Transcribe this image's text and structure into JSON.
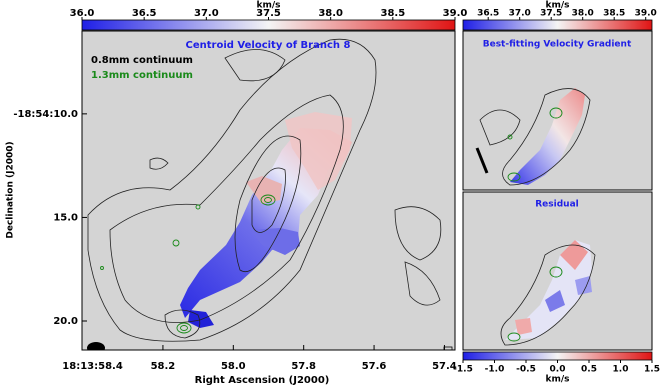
{
  "chart_data": [
    {
      "type": "map",
      "title": "Centroid Velocity of Branch 8",
      "legend": [
        {
          "name": "0.8mm continuum",
          "color": "#000000"
        },
        {
          "name": "1.3mm continuum",
          "color": "#1a8a1a"
        }
      ],
      "xlabel": "Right Ascension (J2000)",
      "ylabel": "Declination (J2000)",
      "xlim": [
        58.43,
        57.37
      ],
      "xticks": [
        {
          "value": 58.4,
          "label": "18:13:58.4"
        },
        58.2,
        {
          "value": 58.0,
          "label": "58.0"
        },
        57.8,
        57.6,
        57.4
      ],
      "ylim": [
        6,
        21.4
      ],
      "yticks": [
        {
          "value": 10,
          "label": "-18:54:10.0"
        },
        {
          "value": 15,
          "label": "15.0"
        },
        {
          "value": 20,
          "label": "20.0"
        }
      ],
      "colorbar": {
        "label": "km/s",
        "lim": [
          36,
          39
        ],
        "ticks": [
          {
            "value": 36,
            "label": "36.0"
          },
          36.5,
          {
            "value": 37,
            "label": "37.0"
          },
          37.5,
          {
            "value": 38,
            "label": "38.0"
          },
          38.5,
          {
            "value": 39,
            "label": "39.0"
          }
        ]
      }
    },
    {
      "type": "map",
      "title": "Best-fitting Velocity Gradient",
      "colorbar": {
        "label": "km/s",
        "lim": [
          36.1,
          39.1
        ],
        "ticks": [
          36.5,
          {
            "value": 37,
            "label": "37.0"
          },
          37.5,
          {
            "value": 38,
            "label": "38.0"
          },
          38.5,
          {
            "value": 39,
            "label": "39.0"
          }
        ]
      }
    },
    {
      "type": "map",
      "title": "Residual",
      "colorbar": {
        "label": "km/s",
        "lim": [
          -1.5,
          1.5
        ],
        "position": "bottom",
        "ticks": [
          -1.5,
          {
            "value": -1,
            "label": "-1.0"
          },
          -0.5,
          {
            "value": 0,
            "label": "0.0"
          },
          0.5,
          {
            "value": 1,
            "label": "1.0"
          },
          1.5
        ]
      }
    }
  ]
}
